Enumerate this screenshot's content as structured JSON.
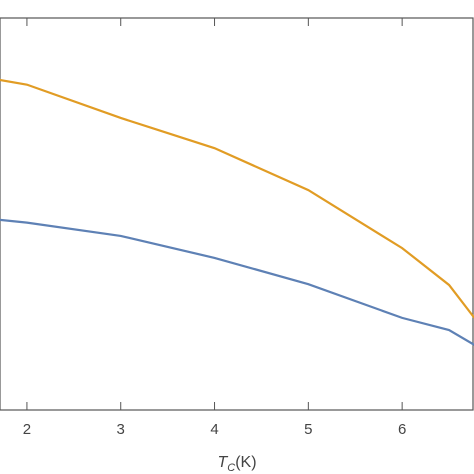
{
  "chart_data": {
    "type": "line",
    "xlabel": {
      "main": "T",
      "sub": "C",
      "unit": "(K)"
    },
    "x": [
      1.71,
      2,
      3,
      4,
      5,
      6,
      6.5,
      6.77
    ],
    "series": [
      {
        "color": "#e19c24",
        "values": [
          0.842,
          0.83,
          0.745,
          0.668,
          0.561,
          0.413,
          0.319,
          0.235
        ]
      },
      {
        "color": "#5e81b5",
        "values": [
          0.485,
          0.478,
          0.444,
          0.388,
          0.321,
          0.235,
          0.204,
          0.166
        ]
      }
    ],
    "xlim": [
      1.713,
      6.766
    ],
    "ylim": [
      0,
      1
    ],
    "xticks": [
      2,
      3,
      4,
      5,
      6
    ]
  }
}
